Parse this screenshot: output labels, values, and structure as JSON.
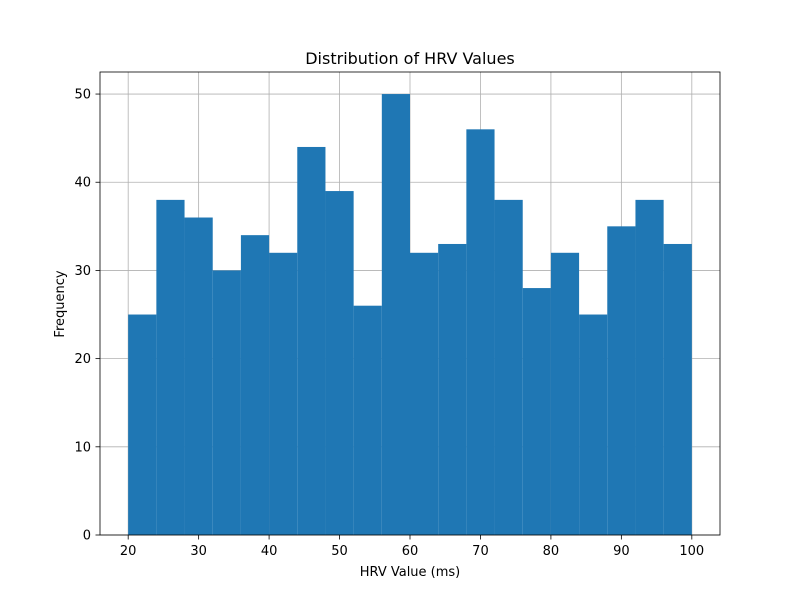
{
  "chart_data": {
    "type": "bar",
    "title": "Distribution of HRV Values",
    "xlabel": "HRV Value (ms)",
    "ylabel": "Frequency",
    "bin_edges": [
      20,
      24,
      28,
      32,
      36,
      40,
      44,
      48,
      52,
      56,
      60,
      64,
      68,
      72,
      76,
      80,
      84,
      88,
      92,
      96,
      100
    ],
    "values": [
      25,
      38,
      36,
      30,
      34,
      32,
      44,
      39,
      26,
      50,
      32,
      33,
      46,
      38,
      28,
      32,
      25,
      35,
      38,
      33
    ],
    "xlim": [
      16,
      104
    ],
    "ylim": [
      0,
      52.5
    ],
    "x_ticks": [
      20,
      30,
      40,
      50,
      60,
      70,
      80,
      90,
      100
    ],
    "y_ticks": [
      0,
      10,
      20,
      30,
      40,
      50
    ],
    "grid": true,
    "bar_color": "#1f77b4",
    "grid_color": "#b0b0b0"
  }
}
